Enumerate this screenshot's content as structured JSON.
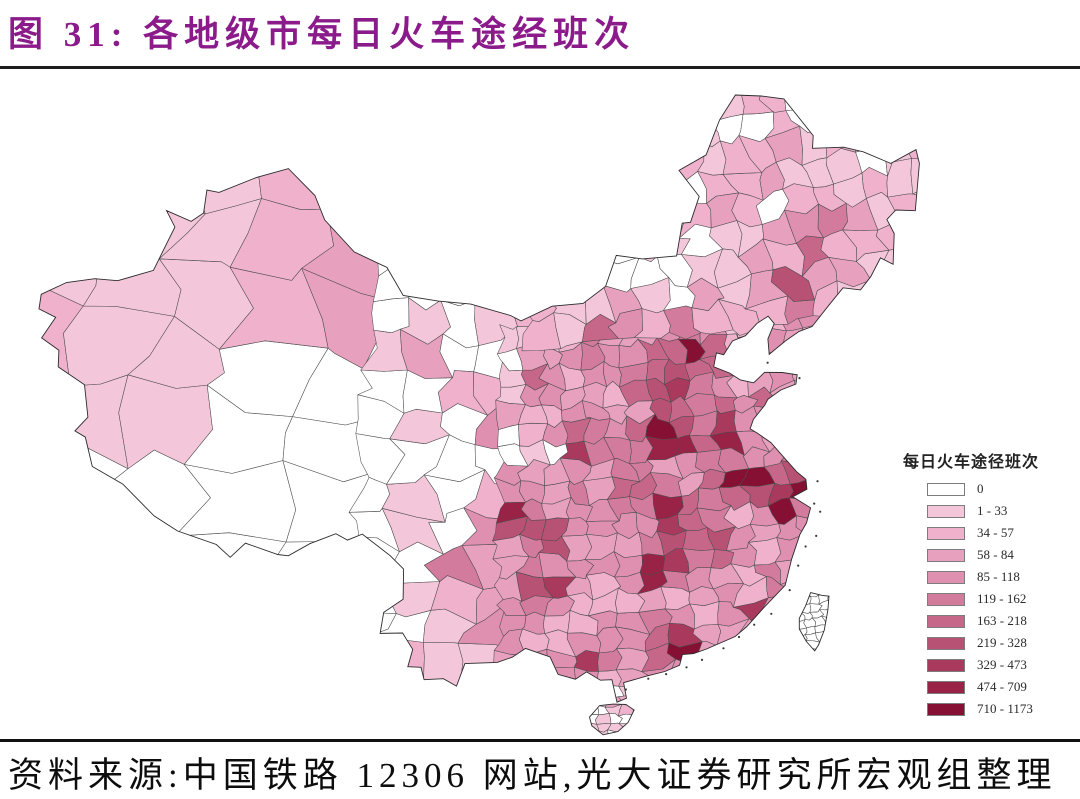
{
  "figure": {
    "title": "图 31: 各地级市每日火车途经班次",
    "source": "资料来源:中国铁路 12306 网站,光大证券研究所宏观组整理"
  },
  "legend": {
    "title": "每日火车途径班次",
    "items": [
      {
        "label": "0",
        "color": "#ffffff"
      },
      {
        "label": "1 - 33",
        "color": "#f4c6da"
      },
      {
        "label": "34 - 57",
        "color": "#efb1cc"
      },
      {
        "label": "58 - 84",
        "color": "#e7a0be"
      },
      {
        "label": "85 - 118",
        "color": "#df8fb0"
      },
      {
        "label": "119 - 162",
        "color": "#d37b9d"
      },
      {
        "label": "163 - 218",
        "color": "#c6678a"
      },
      {
        "label": "219 - 328",
        "color": "#b85274"
      },
      {
        "label": "329 - 473",
        "color": "#a93a5d"
      },
      {
        "label": "474 - 709",
        "color": "#992247"
      },
      {
        "label": "710 - 1173",
        "color": "#861034"
      }
    ]
  },
  "chart_data": {
    "type": "choropleth-map",
    "title": "各地级市每日火车途经班次",
    "region": "China, prefecture-level cities",
    "metric": "每日火车途经班次 (daily train services passing through)",
    "bins": [
      [
        0,
        0
      ],
      [
        1,
        33
      ],
      [
        34,
        57
      ],
      [
        58,
        84
      ],
      [
        85,
        118
      ],
      [
        119,
        162
      ],
      [
        163,
        218
      ],
      [
        219,
        328
      ],
      [
        329,
        473
      ],
      [
        474,
        709
      ],
      [
        710,
        1173
      ]
    ],
    "legend_position": "right-middle",
    "no_data_regions": [
      "台湾"
    ]
  },
  "map_model": {
    "noise": 2.6,
    "bases": [
      [
        73,
        92,
        34,
        42,
        1.8
      ],
      [
        79,
        93,
        42,
        49.5,
        1.8
      ],
      [
        85,
        94.5,
        41.5,
        45.5,
        3.0
      ],
      [
        85,
        95,
        36,
        42,
        2.6
      ],
      [
        77,
        92,
        31,
        35.2,
        1.6
      ],
      [
        77,
        98,
        26.5,
        31,
        0.3
      ],
      [
        92,
        98.5,
        27,
        32.5,
        0.35
      ],
      [
        88.5,
        103,
        30.5,
        39.5,
        0.15
      ],
      [
        97,
        107,
        37,
        42.5,
        0.3
      ],
      [
        93.5,
        97,
        38.8,
        40.8,
        2.0
      ],
      [
        96.5,
        100.5,
        37.8,
        39.8,
        2.0
      ],
      [
        100,
        104,
        36.5,
        38.8,
        2.0
      ],
      [
        104.5,
        113,
        40.2,
        43.5,
        2.0
      ],
      [
        110,
        120,
        40.5,
        43.2,
        2.2
      ],
      [
        113,
        120,
        43.2,
        47.5,
        1.3
      ],
      [
        116,
        122.5,
        46.5,
        50.5,
        1.6
      ],
      [
        119,
        135,
        40,
        50,
        2.2
      ],
      [
        120,
        126.5,
        38.6,
        43.5,
        2.4
      ],
      [
        121,
        135,
        50,
        53.6,
        1.5
      ],
      [
        105,
        123.2,
        34.8,
        40.5,
        3.4
      ],
      [
        108,
        123.8,
        27.5,
        34.8,
        4.0
      ],
      [
        104,
        122.5,
        21.3,
        27.5,
        3.6
      ],
      [
        101,
        108.5,
        26.5,
        33.5,
        3.9
      ],
      [
        97,
        104,
        21,
        27.2,
        2.1
      ],
      [
        99,
        104.5,
        29,
        36.5,
        0.45
      ],
      [
        108.5,
        111.2,
        18,
        20.3,
        0.9
      ]
    ],
    "hotspots": [
      [
        116.4,
        39.85,
        0.7,
        7.5
      ],
      [
        117.2,
        39.1,
        0.5,
        4.5
      ],
      [
        114.5,
        38.0,
        0.7,
        5
      ],
      [
        113.7,
        34.8,
        0.75,
        6.5
      ],
      [
        112.5,
        37.8,
        0.6,
        4.5
      ],
      [
        108.9,
        34.3,
        0.7,
        5.5
      ],
      [
        117.0,
        36.7,
        0.6,
        4.5
      ],
      [
        120.4,
        36.1,
        0.55,
        4
      ],
      [
        123.4,
        41.8,
        0.75,
        5.5
      ],
      [
        125.3,
        43.9,
        0.7,
        5
      ],
      [
        126.6,
        45.75,
        0.8,
        6
      ],
      [
        121.6,
        39.1,
        0.45,
        3.5
      ],
      [
        121.4,
        31.25,
        0.65,
        7
      ],
      [
        118.8,
        32.1,
        0.65,
        5.5
      ],
      [
        120.2,
        30.3,
        0.65,
        5.5
      ],
      [
        117.3,
        31.9,
        0.65,
        5
      ],
      [
        115.9,
        28.7,
        0.65,
        5
      ],
      [
        114.3,
        30.6,
        0.7,
        6.5
      ],
      [
        113.0,
        28.2,
        0.7,
        6
      ],
      [
        112.6,
        26.9,
        0.55,
        5
      ],
      [
        113.3,
        23.25,
        0.65,
        7.5
      ],
      [
        119.3,
        26.1,
        0.5,
        4.5
      ],
      [
        118.1,
        24.5,
        0.5,
        4.5
      ],
      [
        104.1,
        30.7,
        0.7,
        6.5
      ],
      [
        106.5,
        29.6,
        0.65,
        5.5
      ],
      [
        106.7,
        26.6,
        0.65,
        5
      ],
      [
        102.7,
        25.05,
        0.6,
        4.5
      ],
      [
        108.3,
        22.8,
        0.6,
        4.5
      ],
      [
        103.8,
        36.1,
        0.6,
        5
      ],
      [
        101.75,
        36.6,
        0.45,
        3.5
      ],
      [
        87.6,
        43.8,
        0.6,
        3.5
      ],
      [
        111.7,
        40.8,
        0.55,
        3.5
      ],
      [
        109.9,
        40.6,
        0.55,
        3.5
      ],
      [
        114.1,
        22.65,
        0.45,
        5
      ],
      [
        110.2,
        20.05,
        0.35,
        3
      ],
      [
        117.2,
        34.3,
        0.65,
        5
      ],
      [
        114.5,
        36.6,
        0.6,
        4.5
      ],
      [
        112.0,
        32.0,
        0.6,
        4
      ],
      [
        106.2,
        38.5,
        0.5,
        4
      ],
      [
        91.3,
        29.65,
        0.55,
        2.8
      ],
      [
        94.9,
        36.4,
        0.4,
        1.5
      ],
      [
        118.0,
        35.0,
        0.55,
        4
      ],
      [
        115.0,
        34.8,
        0.65,
        4.5
      ],
      [
        113.5,
        40.1,
        0.5,
        3.5
      ],
      [
        122.2,
        43.6,
        0.5,
        4
      ]
    ]
  }
}
